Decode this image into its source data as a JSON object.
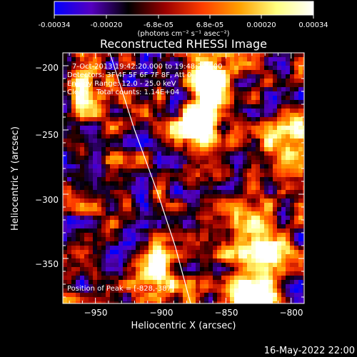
{
  "colorbar": {
    "ticks": [
      "-0.00034",
      "-0.00020",
      "-6.8e-05",
      "6.8e-05",
      "0.00020",
      "0.00034"
    ],
    "unit": "(photons cm⁻² s⁻¹ asec⁻²)",
    "colors": [
      "#0000ff",
      "#5500c0",
      "#000000",
      "#9b0000",
      "#ff3d00",
      "#ffa000",
      "#ffff80",
      "#ffffff"
    ]
  },
  "overlay": {
    "time_range": "7-Oct-2013 19:42:20.000 to 19:48:20.000",
    "detectors": "Detectors: 3F 4F 5F 6F 7F 8F, Att 0",
    "energy": "Energy Range: 12.0 - 25.0 keV",
    "method": "Clean    Total counts: 1.14E+04",
    "peak": "Position of Peak = [-828,-387]"
  },
  "footer": {
    "date": "16-May-2022 22:00"
  },
  "chart_data": {
    "type": "heatmap",
    "title": "Reconstructed RHESSI Image",
    "xlabel": "Heliocentric X (arcsec)",
    "ylabel": "Heliocentric Y (arcsec)",
    "xlim": [
      -975,
      -790
    ],
    "ylim": [
      -385,
      -190
    ],
    "xticks": [
      -950,
      -900,
      -850,
      -800
    ],
    "yticks": [
      -200,
      -250,
      -300,
      -350
    ],
    "xtick_labels": [
      "−950",
      "−900",
      "−850",
      "−800"
    ],
    "ytick_labels": [
      "−200",
      "−250",
      "−300",
      "−350"
    ],
    "value_range": [
      -0.00034,
      0.00034
    ],
    "bright_regions": [
      {
        "x": -862,
        "y": -212,
        "value": 0.00034
      },
      {
        "x": -870,
        "y": -250,
        "value": 0.00034
      },
      {
        "x": -905,
        "y": -362,
        "value": 0.0003
      },
      {
        "x": -825,
        "y": -345,
        "value": 0.00034
      },
      {
        "x": -828,
        "y": -380,
        "value": 0.00034
      },
      {
        "x": -805,
        "y": -250,
        "value": 0.00022
      },
      {
        "x": -955,
        "y": -215,
        "value": 0.00018
      }
    ],
    "limb": [
      [
        -939,
        -190
      ],
      [
        -920,
        -250
      ],
      [
        -902,
        -300
      ],
      [
        -889,
        -340
      ],
      [
        -877,
        -385
      ]
    ]
  }
}
